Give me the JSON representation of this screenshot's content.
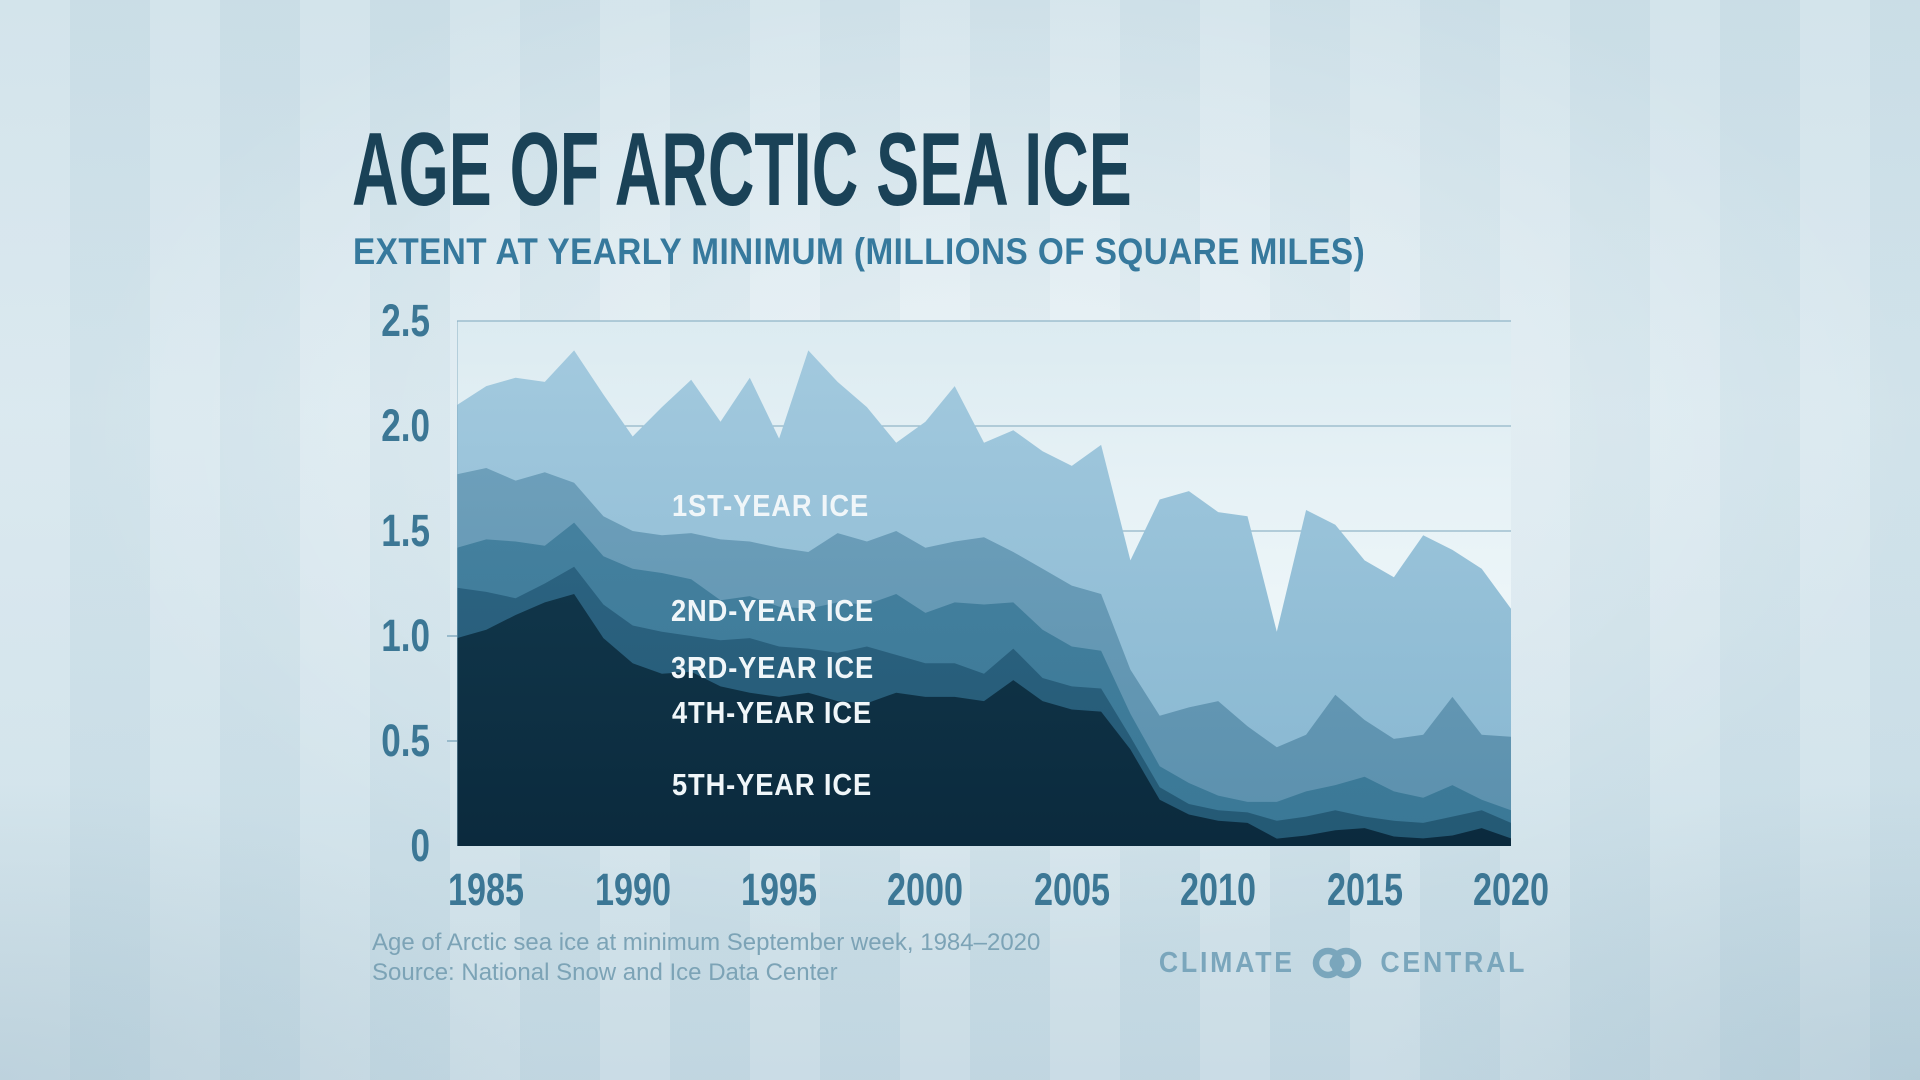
{
  "title": "AGE OF ARCTIC SEA ICE",
  "subtitle": "EXTENT AT YEARLY MINIMUM (MILLIONS OF SQUARE MILES)",
  "footer": {
    "line1": "Age of Arctic sea ice at minimum September week, 1984–2020",
    "line2": "Source: National Snow and Ice Data Center"
  },
  "logo": {
    "word_left": "CLIMATE",
    "word_right": "CENTRAL",
    "icon": "interlocked-rings-icon",
    "color": "#7aa6bc"
  },
  "colors": {
    "background": "#d3e4ec",
    "plot_background_top": "#dcebf1",
    "plot_background_bottom": "#f4fafb",
    "title_text": "#1a4257",
    "subtitle_text": "#36799d",
    "axis_text": "#3c7795",
    "gridline": "#83abc0",
    "footer_text": "#7ca3b6",
    "series_label_text": "#f0f6f9"
  },
  "chart_data": {
    "type": "area",
    "stacked": true,
    "title": "AGE OF ARCTIC SEA ICE",
    "subtitle": "EXTENT AT YEARLY MINIMUM (MILLIONS OF SQUARE MILES)",
    "unit": "millions of square miles",
    "x": [
      1984,
      1985,
      1986,
      1987,
      1988,
      1989,
      1990,
      1991,
      1992,
      1993,
      1994,
      1995,
      1996,
      1997,
      1998,
      1999,
      2000,
      2001,
      2002,
      2003,
      2004,
      2005,
      2006,
      2007,
      2008,
      2009,
      2010,
      2011,
      2012,
      2013,
      2014,
      2015,
      2016,
      2017,
      2018,
      2019,
      2020
    ],
    "ylim": [
      0,
      2.5
    ],
    "grid": true,
    "y_gridlines": [
      2.5,
      2.0,
      1.5
    ],
    "y_minor_ticks": [
      1.0,
      0.5
    ],
    "y_tick_values": [
      2.5,
      2.0,
      1.5,
      1.0,
      0.5,
      0
    ],
    "y_tick_labels": [
      "2.5",
      "2.0",
      "1.5",
      "1.0",
      "0.5",
      "0"
    ],
    "x_tick_values": [
      1985,
      1990,
      1995,
      2000,
      2005,
      2010,
      2015,
      2020
    ],
    "x_tick_labels": [
      "1985",
      "1990",
      "1995",
      "2000",
      "2005",
      "2010",
      "2015",
      "2020"
    ],
    "legend_position": "labels-inside-plot",
    "stack_order": "bottom-to-top: 5th-year, 4th-year, 3rd-year, 2nd-year, 1st-year",
    "series": [
      {
        "name": "1ST-YEAR ICE",
        "color_top": "#a2c9de",
        "color_bottom": "#86b6d0",
        "values": [
          0.33,
          0.39,
          0.49,
          0.43,
          0.63,
          0.58,
          0.45,
          0.61,
          0.73,
          0.56,
          0.78,
          0.52,
          0.96,
          0.72,
          0.64,
          0.42,
          0.6,
          0.74,
          0.45,
          0.58,
          0.56,
          0.57,
          0.71,
          0.52,
          1.03,
          1.03,
          0.9,
          1.0,
          0.55,
          1.07,
          0.81,
          0.76,
          0.77,
          0.95,
          0.7,
          0.79,
          0.61
        ]
      },
      {
        "name": "2ND-YEAR ICE",
        "color_top": "#6d9fba",
        "color_bottom": "#5b90ad",
        "values": [
          0.35,
          0.34,
          0.29,
          0.35,
          0.19,
          0.19,
          0.18,
          0.18,
          0.22,
          0.29,
          0.26,
          0.28,
          0.27,
          0.33,
          0.3,
          0.3,
          0.31,
          0.29,
          0.32,
          0.24,
          0.29,
          0.29,
          0.27,
          0.21,
          0.24,
          0.36,
          0.45,
          0.36,
          0.26,
          0.27,
          0.43,
          0.27,
          0.25,
          0.3,
          0.42,
          0.31,
          0.35
        ]
      },
      {
        "name": "3RD-YEAR ICE",
        "color_top": "#44809e",
        "color_bottom": "#3a7896",
        "values": [
          0.19,
          0.25,
          0.27,
          0.18,
          0.21,
          0.23,
          0.27,
          0.28,
          0.27,
          0.19,
          0.2,
          0.19,
          0.19,
          0.24,
          0.2,
          0.29,
          0.24,
          0.29,
          0.33,
          0.22,
          0.23,
          0.19,
          0.18,
          0.11,
          0.1,
          0.1,
          0.07,
          0.05,
          0.09,
          0.12,
          0.12,
          0.19,
          0.14,
          0.12,
          0.15,
          0.05,
          0.06
        ]
      },
      {
        "name": "4TH-YEAR ICE",
        "color_top": "#2b6280",
        "color_bottom": "#245974",
        "values": [
          0.24,
          0.18,
          0.08,
          0.09,
          0.13,
          0.16,
          0.18,
          0.2,
          0.17,
          0.22,
          0.26,
          0.24,
          0.21,
          0.23,
          0.27,
          0.18,
          0.16,
          0.16,
          0.13,
          0.15,
          0.11,
          0.11,
          0.11,
          0.06,
          0.06,
          0.05,
          0.05,
          0.05,
          0.085,
          0.09,
          0.095,
          0.055,
          0.075,
          0.074,
          0.09,
          0.085,
          0.074
        ]
      },
      {
        "name": "5TH-YEAR ICE",
        "color_top": "#103549",
        "color_bottom": "#0b2a3d",
        "values": [
          0.99,
          1.03,
          1.1,
          1.16,
          1.2,
          0.99,
          0.87,
          0.82,
          0.83,
          0.76,
          0.73,
          0.71,
          0.73,
          0.69,
          0.68,
          0.73,
          0.71,
          0.71,
          0.69,
          0.79,
          0.69,
          0.65,
          0.64,
          0.46,
          0.22,
          0.15,
          0.12,
          0.11,
          0.035,
          0.05,
          0.075,
          0.085,
          0.045,
          0.036,
          0.05,
          0.085,
          0.036
        ]
      }
    ]
  }
}
